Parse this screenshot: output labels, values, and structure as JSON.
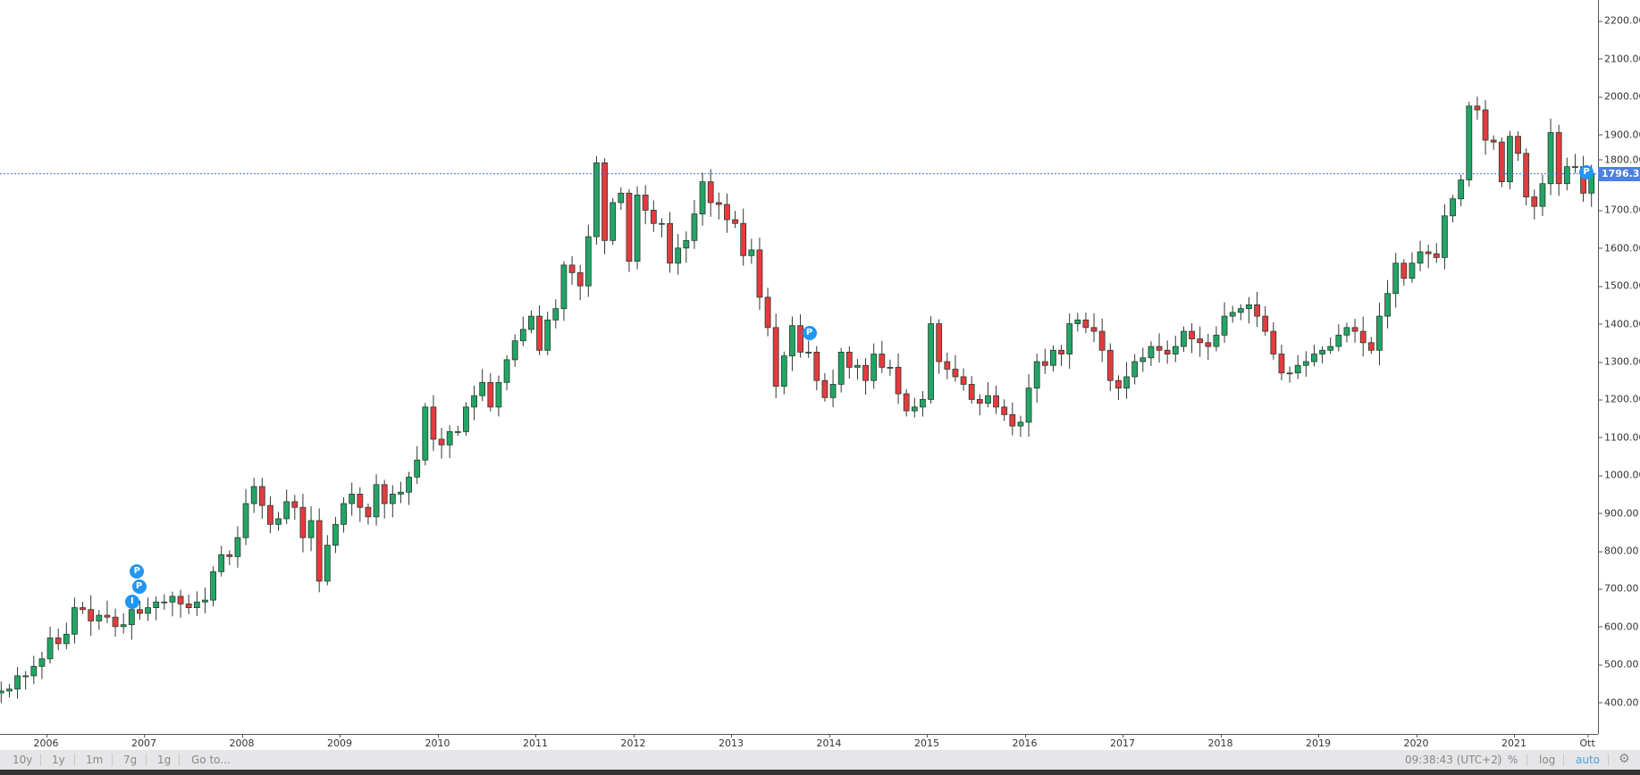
{
  "chart_data": {
    "type": "candlestick",
    "title": "",
    "y_ticks": [
      "400.00",
      "500.00",
      "600.00",
      "700.00",
      "800.00",
      "900.00",
      "1000.00",
      "1100.00",
      "1200.00",
      "1300.00",
      "1400.00",
      "1500.00",
      "1600.00",
      "1700.00",
      "1800.00",
      "1900.00",
      "2000.00",
      "2100.00",
      "2200.00"
    ],
    "ylim": [
      400,
      2200
    ],
    "x_ticks": [
      "2006",
      "2007",
      "2008",
      "2009",
      "2010",
      "2011",
      "2012",
      "2013",
      "2014",
      "2015",
      "2016",
      "2017",
      "2018",
      "2019",
      "2020",
      "2021",
      "Ott"
    ],
    "last_price": "1796.30",
    "colors": {
      "up": "#22a565",
      "down": "#e53a3f",
      "wick": "#2b3a2e",
      "price_line": "#3d6ff0",
      "marker": "#2196f3"
    },
    "first_open": 425,
    "start": "2005-07",
    "monthly_close": {
      "2005": [
        430,
        435,
        470,
        470,
        495,
        515
      ],
      "2006": [
        570,
        555,
        580,
        650,
        645,
        615,
        630,
        625,
        600,
        605,
        645,
        635
      ],
      "2007": [
        650,
        665,
        665,
        680,
        660,
        650,
        665,
        670,
        745,
        790,
        785,
        835
      ],
      "2008": [
        925,
        970,
        920,
        870,
        885,
        930,
        915,
        835,
        880,
        720,
        815,
        870
      ],
      "2009": [
        925,
        950,
        915,
        890,
        975,
        925,
        950,
        955,
        995,
        1040,
        1180,
        1095
      ],
      "2010": [
        1080,
        1115,
        1115,
        1180,
        1210,
        1245,
        1180,
        1245,
        1305,
        1355,
        1385,
        1420
      ],
      "2011": [
        1330,
        1410,
        1440,
        1555,
        1535,
        1500,
        1630,
        1825,
        1620,
        1720,
        1745,
        1565
      ],
      "2012": [
        1740,
        1700,
        1665,
        1665,
        1560,
        1600,
        1620,
        1690,
        1775,
        1720,
        1715,
        1675
      ],
      "2013": [
        1665,
        1580,
        1595,
        1470,
        1390,
        1235,
        1315,
        1395,
        1325,
        1325,
        1250,
        1205
      ],
      "2014": [
        1240,
        1325,
        1285,
        1290,
        1250,
        1320,
        1285,
        1285,
        1215,
        1170,
        1180,
        1200
      ],
      "2015": [
        1400,
        1300,
        1280,
        1260,
        1240,
        1200,
        1190,
        1210,
        1180,
        1160,
        1130,
        1140
      ],
      "2016": [
        1230,
        1300,
        1290,
        1330,
        1320,
        1400,
        1410,
        1390,
        1380,
        1330,
        1250,
        1230
      ],
      "2017": [
        1260,
        1300,
        1310,
        1340,
        1330,
        1320,
        1340,
        1380,
        1360,
        1350,
        1340,
        1370
      ],
      "2018": [
        1420,
        1430,
        1440,
        1450,
        1420,
        1380,
        1320,
        1270,
        1270,
        1290,
        1300,
        1320
      ],
      "2019": [
        1330,
        1340,
        1370,
        1390,
        1380,
        1350,
        1330,
        1420,
        1480,
        1560,
        1520,
        1560
      ],
      "2020": [
        1590,
        1585,
        1575,
        1685,
        1730,
        1780,
        1975,
        1965,
        1885,
        1880,
        1775,
        1895
      ],
      "2021": [
        1850,
        1735,
        1710,
        1770,
        1905,
        1770,
        1815,
        1815,
        1745,
        1796
      ]
    },
    "markers": [
      {
        "label": "I",
        "date": 2006.88,
        "price": 665
      },
      {
        "label": "P",
        "date": 2006.95,
        "price": 665
      },
      {
        "label": "P",
        "date": 2006.93,
        "price": 690
      },
      {
        "label": "P",
        "date": 2013.8,
        "price": 1375
      },
      {
        "label": "P",
        "date": 2021.74,
        "price": 1800
      }
    ]
  },
  "toolbar": {
    "ranges": [
      "10y",
      "1y",
      "1m",
      "7g",
      "1g"
    ],
    "goto": "Go to...",
    "time": "09:38:43 (UTC+2)",
    "percent": "%",
    "log": "log",
    "auto": "auto",
    "auto_color": "#4aa3df"
  }
}
